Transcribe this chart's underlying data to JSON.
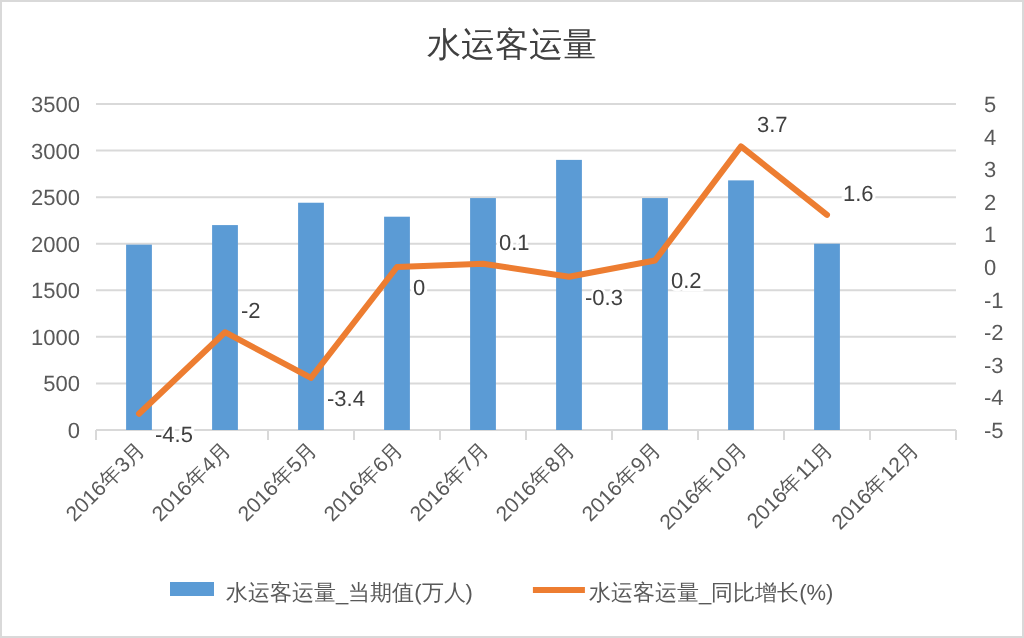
{
  "chart_data": {
    "type": "bar",
    "title": "水运客运量",
    "categories": [
      "2016年3月",
      "2016年4月",
      "2016年5月",
      "2016年6月",
      "2016年7月",
      "2016年8月",
      "2016年9月",
      "2016年10月",
      "2016年11月",
      "2016年12月"
    ],
    "series": [
      {
        "name": "水运客运量_当期值(万人)",
        "color": "#5b9bd5",
        "values": [
          1990,
          2200,
          2440,
          2290,
          2490,
          2900,
          2490,
          2680,
          2000,
          null
        ]
      },
      {
        "name": "水运客运量_同比增长(%)",
        "type": "line",
        "axis": "y2",
        "color": "#ed7d31",
        "values": [
          -4.5,
          -2,
          -3.4,
          0,
          0.1,
          -0.3,
          0.2,
          3.7,
          1.6,
          null
        ],
        "value_labels": [
          "-4.5",
          "-2",
          "-3.4",
          "0",
          "0.1",
          "-0.3",
          "0.2",
          "3.7",
          "1.6",
          null
        ]
      }
    ],
    "ylim": [
      0,
      3500
    ],
    "yticks": [
      0,
      500,
      1000,
      1500,
      2000,
      2500,
      3000,
      3500
    ],
    "y2lim": [
      -5,
      5
    ],
    "y2ticks": [
      -5,
      -4,
      -3,
      -2,
      -1,
      0,
      1,
      2,
      3,
      4,
      5
    ],
    "grid": "y",
    "legend": "bottom",
    "marker": "none",
    "line_style": "solid"
  }
}
